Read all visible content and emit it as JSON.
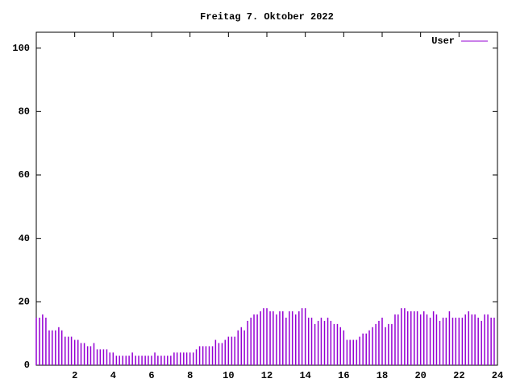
{
  "chart_data": {
    "type": "impulses",
    "title": "Freitag 7. Oktober 2022",
    "xlim": [
      0,
      24
    ],
    "xticks": [
      2,
      4,
      6,
      8,
      10,
      12,
      14,
      16,
      18,
      20,
      22,
      24
    ],
    "ylim": [
      0,
      105
    ],
    "yticks": [
      0,
      20,
      40,
      60,
      80,
      100
    ],
    "legend": "top-right",
    "series": [
      {
        "name": "User",
        "color": "#9400d3",
        "x": [
          0,
          0.17,
          0.33,
          0.5,
          0.67,
          0.83,
          1,
          1.17,
          1.33,
          1.5,
          1.67,
          1.83,
          2,
          2.17,
          2.33,
          2.5,
          2.67,
          2.83,
          3,
          3.17,
          3.33,
          3.5,
          3.67,
          3.83,
          4,
          4.17,
          4.33,
          4.5,
          4.67,
          4.83,
          5,
          5.17,
          5.33,
          5.5,
          5.67,
          5.83,
          6,
          6.17,
          6.33,
          6.5,
          6.67,
          6.83,
          7,
          7.17,
          7.33,
          7.5,
          7.67,
          7.83,
          8,
          8.17,
          8.33,
          8.5,
          8.67,
          8.83,
          9,
          9.17,
          9.33,
          9.5,
          9.67,
          9.83,
          10,
          10.17,
          10.33,
          10.5,
          10.67,
          10.83,
          11,
          11.17,
          11.33,
          11.5,
          11.67,
          11.83,
          12,
          12.17,
          12.33,
          12.5,
          12.67,
          12.83,
          13,
          13.17,
          13.33,
          13.5,
          13.67,
          13.83,
          14,
          14.17,
          14.33,
          14.5,
          14.67,
          14.83,
          15,
          15.17,
          15.33,
          15.5,
          15.67,
          15.83,
          16,
          16.17,
          16.33,
          16.5,
          16.67,
          16.83,
          17,
          17.17,
          17.33,
          17.5,
          17.67,
          17.83,
          18,
          18.17,
          18.33,
          18.5,
          18.67,
          18.83,
          19,
          19.17,
          19.33,
          19.5,
          19.67,
          19.83,
          20,
          20.17,
          20.33,
          20.5,
          20.67,
          20.83,
          21,
          21.17,
          21.33,
          21.5,
          21.67,
          21.83,
          22,
          22.17,
          22.33,
          22.5,
          22.67,
          22.83,
          23,
          23.17,
          23.33,
          23.5,
          23.67,
          23.83
        ],
        "values": [
          15,
          15,
          16,
          15,
          11,
          11,
          11,
          12,
          11,
          9,
          9,
          9,
          8,
          8,
          7,
          7,
          6,
          6,
          7,
          5,
          5,
          5,
          5,
          4,
          4,
          3,
          3,
          3,
          3,
          3,
          4,
          3,
          3,
          3,
          3,
          3,
          3,
          4,
          3,
          3,
          3,
          3,
          3,
          4,
          4,
          4,
          4,
          4,
          4,
          4,
          5,
          6,
          6,
          6,
          6,
          6,
          8,
          7,
          7,
          8,
          9,
          9,
          9,
          11,
          12,
          11,
          14,
          15,
          16,
          16,
          17,
          18,
          18,
          17,
          17,
          16,
          17,
          17,
          15,
          17,
          17,
          16,
          17,
          18,
          18,
          15,
          15,
          13,
          14,
          15,
          14,
          15,
          14,
          13,
          13,
          12,
          11,
          8,
          8,
          8,
          8,
          9,
          10,
          10,
          11,
          12,
          13,
          14,
          15,
          12,
          13,
          13,
          16,
          16,
          18,
          18,
          17,
          17,
          17,
          17,
          16,
          17,
          16,
          15,
          17,
          16,
          14,
          15,
          15,
          17,
          15,
          15,
          15,
          15,
          16,
          17,
          16,
          16,
          15,
          14,
          16,
          16,
          15,
          15
        ]
      }
    ]
  }
}
